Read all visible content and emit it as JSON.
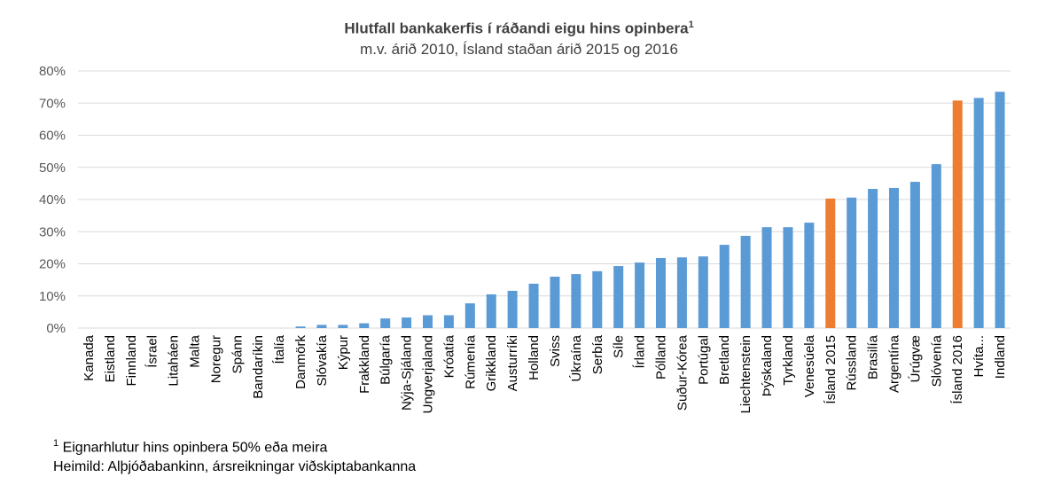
{
  "chart_data": {
    "type": "bar",
    "title": "Hlutfall bankakerfis í ráðandi eigu hins opinbera",
    "title_superscript": "1",
    "subtitle": "m.v. árið 2010, Ísland staðan árið 2015 og 2016",
    "xlabel": "",
    "ylabel": "",
    "ylim": [
      0,
      80
    ],
    "yticks": [
      "0%",
      "10%",
      "20%",
      "30%",
      "40%",
      "50%",
      "60%",
      "70%",
      "80%"
    ],
    "grid": true,
    "categories": [
      "Kanada",
      "Eistland",
      "Finnland",
      "Ísrael",
      "Litaháen",
      "Malta",
      "Noregur",
      "Spánn",
      "Bandaríkin",
      "Ítalía",
      "Danmörk",
      "Slóvakía",
      "Kýpur",
      "Frakkland",
      "Búlgaría",
      "Nýja-Sjáland",
      "Ungverjaland",
      "Króatía",
      "Rúmenía",
      "Grikkland",
      "Austurríki",
      "Holland",
      "Sviss",
      "Úkraína",
      "Serbía",
      "Síle",
      "Írland",
      "Pólland",
      "Suður-Kórea",
      "Portúgal",
      "Bretland",
      "Liechtenstein",
      "Þýskaland",
      "Tyrkland",
      "Venesúela",
      "Ísland 2015",
      "Rússland",
      "Brasilía",
      "Argentína",
      "Úrúgvæ",
      "Slóvenía",
      "Ísland 2016",
      "Hvíta...",
      "Indland"
    ],
    "values": [
      0,
      0,
      0,
      0,
      0,
      0,
      0,
      0,
      0,
      0,
      0.5,
      1,
      1,
      1.5,
      3,
      3.3,
      4,
      4,
      7.7,
      10.5,
      11.6,
      13.8,
      16,
      16.8,
      17.7,
      19.3,
      20.4,
      21.8,
      22,
      22.3,
      25.9,
      28.7,
      31.4,
      31.4,
      32.8,
      40.3,
      40.6,
      43.3,
      43.6,
      45.5,
      51,
      70.8,
      71.6,
      73.5
    ],
    "highlight": [
      "Ísland 2015",
      "Ísland 2016"
    ],
    "colors": {
      "default": "#5b9bd5",
      "highlight": "#ed7d31",
      "grid": "#d9d9d9",
      "axis_text": "#595959"
    }
  },
  "footnotes": {
    "note": "Eignarhlutur  hins  opinbera 50% eða meira",
    "note_mark": "1",
    "source": "Heimild:  Alþjóðabankinn,  ársreikningar viðskiptabankanna"
  }
}
